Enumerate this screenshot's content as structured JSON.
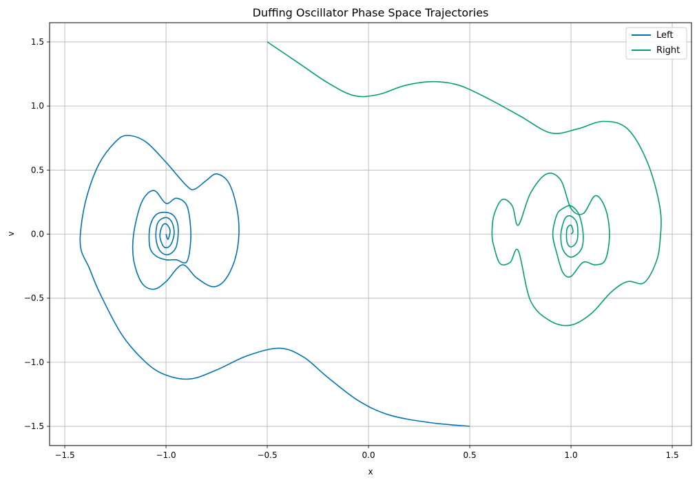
{
  "chart_data": {
    "type": "line",
    "title": "Duffing Oscillator Phase Space Trajectories",
    "xlabel": "x",
    "ylabel": "v",
    "xlim": [
      -1.575,
      1.595
    ],
    "ylim": [
      -1.65,
      1.65
    ],
    "xticks": [
      -1.5,
      -1.0,
      -0.5,
      0.0,
      0.5,
      1.0,
      1.5
    ],
    "xtick_labels": [
      "−1.5",
      "−1.0",
      "−0.5",
      "0.0",
      "0.5",
      "1.0",
      "1.5"
    ],
    "yticks": [
      -1.5,
      -1.0,
      -0.5,
      0.0,
      0.5,
      1.0,
      1.5
    ],
    "ytick_labels": [
      "−1.5",
      "−1.0",
      "−0.5",
      "0.0",
      "0.5",
      "1.0",
      "1.5"
    ],
    "grid": true,
    "legend_position": "top-right",
    "series": [
      {
        "name": "Left",
        "color": "#0072b2",
        "points": [
          [
            0.5,
            -1.5
          ],
          [
            0.3,
            -1.47
          ],
          [
            0.1,
            -1.41
          ],
          [
            -0.05,
            -1.3
          ],
          [
            -0.2,
            -1.12
          ],
          [
            -0.32,
            -0.96
          ],
          [
            -0.44,
            -0.89
          ],
          [
            -0.6,
            -0.95
          ],
          [
            -0.75,
            -1.06
          ],
          [
            -0.88,
            -1.13
          ],
          [
            -1.0,
            -1.1
          ],
          [
            -1.1,
            -1.0
          ],
          [
            -1.22,
            -0.78
          ],
          [
            -1.33,
            -0.45
          ],
          [
            -1.38,
            -0.26
          ],
          [
            -1.42,
            -0.12
          ],
          [
            -1.42,
            0.05
          ],
          [
            -1.39,
            0.3
          ],
          [
            -1.33,
            0.55
          ],
          [
            -1.25,
            0.72
          ],
          [
            -1.19,
            0.77
          ],
          [
            -1.1,
            0.72
          ],
          [
            -1.0,
            0.56
          ],
          [
            -0.9,
            0.38
          ],
          [
            -0.86,
            0.35
          ],
          [
            -0.8,
            0.42
          ],
          [
            -0.75,
            0.47
          ],
          [
            -0.69,
            0.4
          ],
          [
            -0.65,
            0.2
          ],
          [
            -0.64,
            0.0
          ],
          [
            -0.66,
            -0.2
          ],
          [
            -0.71,
            -0.36
          ],
          [
            -0.77,
            -0.41
          ],
          [
            -0.85,
            -0.34
          ],
          [
            -0.92,
            -0.24
          ],
          [
            -1.0,
            -0.37
          ],
          [
            -1.06,
            -0.43
          ],
          [
            -1.12,
            -0.38
          ],
          [
            -1.16,
            -0.2
          ],
          [
            -1.16,
            0.0
          ],
          [
            -1.12,
            0.25
          ],
          [
            -1.06,
            0.34
          ],
          [
            -1.0,
            0.24
          ],
          [
            -0.95,
            0.28
          ],
          [
            -0.9,
            0.23
          ],
          [
            -0.88,
            0.08
          ],
          [
            -0.88,
            -0.09
          ],
          [
            -0.9,
            -0.22
          ],
          [
            -0.95,
            -0.2
          ],
          [
            -1.0,
            -0.2
          ],
          [
            -1.05,
            -0.17
          ],
          [
            -1.08,
            -0.1
          ],
          [
            -1.08,
            0.05
          ],
          [
            -1.05,
            0.15
          ],
          [
            -1.0,
            0.17
          ],
          [
            -0.96,
            0.14
          ],
          [
            -0.94,
            0.05
          ],
          [
            -0.95,
            -0.1
          ],
          [
            -0.99,
            -0.16
          ],
          [
            -1.03,
            -0.13
          ],
          [
            -1.05,
            -0.03
          ],
          [
            -1.04,
            0.09
          ],
          [
            -1.0,
            0.13
          ],
          [
            -0.97,
            0.09
          ],
          [
            -0.96,
            0.0
          ],
          [
            -0.98,
            -0.09
          ],
          [
            -1.01,
            -0.1
          ],
          [
            -1.03,
            -0.02
          ],
          [
            -1.02,
            0.06
          ],
          [
            -1.0,
            0.08
          ],
          [
            -0.98,
            0.03
          ],
          [
            -0.99,
            -0.04
          ],
          [
            -1.0,
            0.0
          ]
        ]
      },
      {
        "name": "Right",
        "color": "#009e73",
        "points": [
          [
            -0.5,
            1.5
          ],
          [
            -0.35,
            1.34
          ],
          [
            -0.2,
            1.18
          ],
          [
            -0.07,
            1.08
          ],
          [
            0.05,
            1.09
          ],
          [
            0.18,
            1.16
          ],
          [
            0.32,
            1.19
          ],
          [
            0.45,
            1.16
          ],
          [
            0.6,
            1.05
          ],
          [
            0.75,
            0.92
          ],
          [
            0.9,
            0.79
          ],
          [
            1.03,
            0.82
          ],
          [
            1.16,
            0.88
          ],
          [
            1.28,
            0.82
          ],
          [
            1.38,
            0.55
          ],
          [
            1.44,
            0.2
          ],
          [
            1.44,
            -0.05
          ],
          [
            1.42,
            -0.22
          ],
          [
            1.36,
            -0.38
          ],
          [
            1.28,
            -0.37
          ],
          [
            1.2,
            -0.45
          ],
          [
            1.1,
            -0.62
          ],
          [
            1.0,
            -0.71
          ],
          [
            0.9,
            -0.68
          ],
          [
            0.8,
            -0.52
          ],
          [
            0.74,
            -0.13
          ],
          [
            0.7,
            -0.22
          ],
          [
            0.65,
            -0.23
          ],
          [
            0.62,
            -0.1
          ],
          [
            0.61,
            0.0
          ],
          [
            0.62,
            0.15
          ],
          [
            0.66,
            0.27
          ],
          [
            0.71,
            0.22
          ],
          [
            0.74,
            0.07
          ],
          [
            0.8,
            0.32
          ],
          [
            0.88,
            0.47
          ],
          [
            0.95,
            0.42
          ],
          [
            1.0,
            0.2
          ],
          [
            1.06,
            0.16
          ],
          [
            1.12,
            0.3
          ],
          [
            1.17,
            0.2
          ],
          [
            1.19,
            0.0
          ],
          [
            1.17,
            -0.2
          ],
          [
            1.12,
            -0.24
          ],
          [
            1.06,
            -0.22
          ],
          [
            1.0,
            -0.33
          ],
          [
            0.96,
            -0.3
          ],
          [
            0.93,
            -0.15
          ],
          [
            0.91,
            0.0
          ],
          [
            0.93,
            0.15
          ],
          [
            0.96,
            0.2
          ],
          [
            1.0,
            0.22
          ],
          [
            1.04,
            0.15
          ],
          [
            1.06,
            0.0
          ],
          [
            1.05,
            -0.12
          ],
          [
            1.0,
            -0.18
          ],
          [
            0.96,
            -0.12
          ],
          [
            0.95,
            0.0
          ],
          [
            0.97,
            0.12
          ],
          [
            1.0,
            0.14
          ],
          [
            1.03,
            0.08
          ],
          [
            1.03,
            -0.05
          ],
          [
            1.0,
            -0.1
          ],
          [
            0.98,
            -0.06
          ],
          [
            0.98,
            0.04
          ],
          [
            1.0,
            0.07
          ],
          [
            1.01,
            0.02
          ],
          [
            1.0,
            0.0
          ]
        ]
      }
    ]
  }
}
